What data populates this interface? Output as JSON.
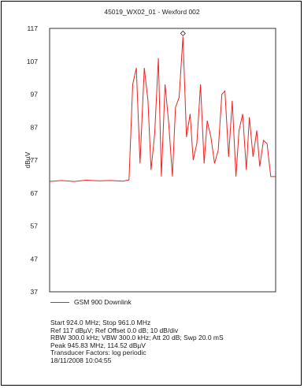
{
  "title": "45019_WX02_01 - Wexford 002",
  "legend": {
    "label": "GSM 900 Downlink",
    "color": "#ee2222"
  },
  "info_lines": [
    "Start 924.0 MHz; Stop 961.0 MHz",
    "Ref 117 dBµV; Ref Offset 0.0 dB; 10 dB/div",
    "RBW 300.0 kHz; VBW 300.0 kHz; Att 20 dB; Swp 20.0 mS",
    "Peak 945.83 MHz, 114.52 dBµV",
    "Transducer Factors: log periodic",
    "18/11/2008 10:04:55"
  ],
  "chart_data": {
    "type": "line",
    "title": "45019_WX02_01 - Wexford 002",
    "ylabel": "dBµV",
    "xlabel": "",
    "xlim": [
      924.0,
      961.0
    ],
    "ylim": [
      37,
      117
    ],
    "yticks": [
      117,
      107,
      97,
      87,
      77,
      67,
      57,
      47,
      37
    ],
    "grid": false,
    "legend_position": "bottom",
    "peak_marker": {
      "x": 945.83,
      "y": 114.52
    },
    "series": [
      {
        "name": "GSM 900 Downlink",
        "color": "#ee2222",
        "x": [
          924.0,
          926.0,
          928.0,
          930.0,
          932.0,
          934.0,
          936.0,
          937.0,
          937.6,
          938.2,
          938.8,
          939.5,
          940.1,
          940.6,
          941.2,
          941.8,
          942.3,
          942.9,
          943.5,
          944.1,
          944.6,
          945.2,
          945.83,
          946.4,
          947.0,
          947.5,
          948.1,
          948.7,
          949.3,
          949.8,
          950.4,
          951.0,
          951.6,
          952.2,
          952.7,
          953.3,
          953.9,
          954.5,
          955.0,
          955.6,
          956.2,
          956.7,
          957.3,
          957.9,
          958.4,
          959.0,
          959.6,
          960.2,
          961.0
        ],
        "values": [
          70.5,
          70.8,
          70.5,
          70.9,
          70.7,
          70.8,
          70.6,
          71.0,
          100.0,
          105.0,
          76.0,
          105.0,
          95.0,
          74.0,
          85.0,
          108.0,
          72.0,
          100.0,
          88.0,
          72.0,
          93.0,
          96.0,
          114.5,
          84.0,
          91.0,
          77.0,
          82.0,
          100.0,
          76.0,
          89.0,
          84.0,
          76.0,
          80.0,
          97.0,
          98.0,
          78.0,
          95.0,
          72.0,
          86.0,
          91.0,
          74.0,
          90.0,
          78.0,
          86.0,
          75.0,
          83.0,
          82.0,
          72.0,
          72.0
        ]
      }
    ]
  }
}
